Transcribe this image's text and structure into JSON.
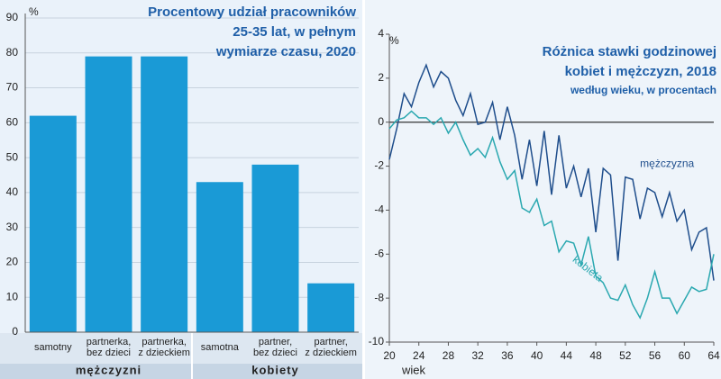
{
  "chart_data": [
    {
      "type": "bar",
      "title_lines": [
        "Procentowy udział pracowników",
        "25-35 lat, w pełnym",
        "wymiarze czasu, 2020"
      ],
      "ylabel": "%",
      "categories": [
        "samotny",
        "partnerka, bez dzieci",
        "partnerka, z dzieckiem",
        "samotna",
        "partner, bez dzieci",
        "partner, z dzieckiem"
      ],
      "groups": [
        "mężczyzni",
        "kobiety"
      ],
      "values": [
        62,
        79,
        79,
        43,
        48,
        14
      ],
      "color": "#1a9ad6",
      "ylim": [
        0,
        90
      ],
      "yticks": [
        0,
        10,
        20,
        30,
        40,
        50,
        60,
        70,
        80,
        90
      ],
      "grid": true
    },
    {
      "type": "line",
      "title_lines": [
        "Różnica stawki godzinowej",
        "kobiet i mężczyzn, 2018"
      ],
      "subtitle": "według wieku, w procentach",
      "ylabel": "%",
      "xlabel": "wiek",
      "x": [
        20,
        21,
        22,
        23,
        24,
        25,
        26,
        27,
        28,
        29,
        30,
        31,
        32,
        33,
        34,
        35,
        36,
        37,
        38,
        39,
        40,
        41,
        42,
        43,
        44,
        45,
        46,
        47,
        48,
        49,
        50,
        51,
        52,
        53,
        54,
        55,
        56,
        57,
        58,
        59,
        60,
        61,
        62,
        63,
        64
      ],
      "series": [
        {
          "name": "mężczyzna",
          "color": "#1f4e8c",
          "values": [
            -1.7,
            -0.3,
            1.3,
            0.7,
            1.8,
            2.6,
            1.6,
            2.3,
            2.0,
            1.0,
            0.3,
            1.3,
            -0.1,
            0,
            0.9,
            -0.8,
            0.7,
            -0.6,
            -2.6,
            -0.8,
            -2.9,
            -0.4,
            -3.3,
            -0.6,
            -3.0,
            -2.0,
            -3.4,
            -2.1,
            -5.0,
            -2.1,
            -2.4,
            -6.3,
            -2.5,
            -2.6,
            -4.4,
            -3.0,
            -3.2,
            -4.3,
            -3.2,
            -4.5,
            -4.0,
            -5.8,
            -5.0,
            -4.8,
            -7.2
          ]
        },
        {
          "name": "kobieta",
          "color": "#2aa8b0",
          "values": [
            -0.3,
            0.1,
            0.2,
            0.5,
            0.2,
            0.2,
            -0.1,
            0.2,
            -0.5,
            0,
            -0.8,
            -1.5,
            -1.2,
            -1.6,
            -0.7,
            -1.8,
            -2.6,
            -2.2,
            -3.9,
            -4.1,
            -3.5,
            -4.7,
            -4.5,
            -5.9,
            -5.4,
            -5.5,
            -6.5,
            -5.2,
            -7.0,
            -7.3,
            -8.0,
            -8.1,
            -7.4,
            -8.3,
            -8.9,
            -8.0,
            -6.8,
            -8.0,
            -8.0,
            -8.7,
            -8.1,
            -7.5,
            -7.7,
            -7.6,
            -6.0
          ]
        }
      ],
      "xlim": [
        20,
        64
      ],
      "xticks": [
        20,
        24,
        28,
        32,
        36,
        40,
        44,
        48,
        52,
        56,
        60,
        64
      ],
      "ylim": [
        -10,
        4
      ],
      "yticks": [
        4,
        2,
        0,
        -2,
        -4,
        -6,
        -8,
        -10
      ],
      "grid": false
    }
  ]
}
